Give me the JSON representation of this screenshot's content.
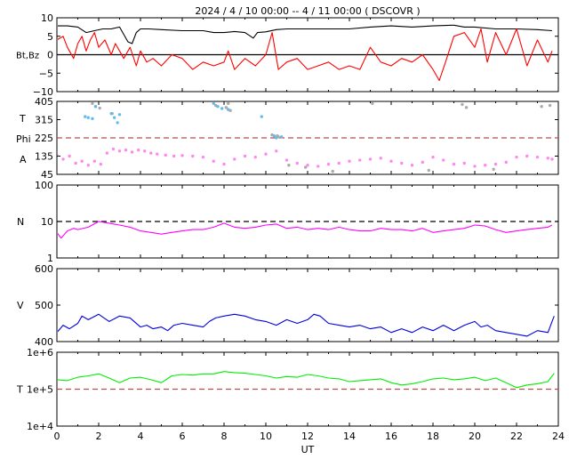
{
  "chart_data": {
    "type": "line",
    "title": "2024 /  4 / 10   00:00  --  4 / 11   00:00 ( DSCOVR )",
    "xlabel": "UT",
    "x_range": [
      0,
      24
    ],
    "x_ticks": [
      "0",
      "2",
      "4",
      "6",
      "8",
      "10",
      "12",
      "14",
      "16",
      "18",
      "20",
      "22",
      "24"
    ],
    "panels": [
      {
        "id": "mag",
        "ylabel": "Bt,Bz",
        "ylim": [
          -10,
          10
        ],
        "y_ticks": [
          "10",
          "5",
          "0",
          "−5",
          "−10"
        ],
        "reference_line": {
          "y": 0,
          "color": "#000000",
          "style": "solid"
        },
        "series": [
          {
            "color": "#000000",
            "x": [
              0,
              0.5,
              1,
              1.4,
              1.8,
              2.2,
              2.6,
              3,
              3.4,
              3.6,
              3.8,
              4,
              4.4,
              5,
              6,
              7,
              7.5,
              8,
              8.5,
              9,
              9.4,
              9.6,
              10,
              10.5,
              11,
              12,
              13,
              14,
              15,
              16,
              17,
              18,
              19,
              19.5,
              20,
              21,
              22,
              23,
              23.7
            ],
            "values": [
              7.8,
              7.8,
              7.5,
              6,
              6.5,
              7,
              7,
              7.5,
              3.5,
              3,
              6,
              7,
              7,
              6.8,
              6.5,
              6.5,
              6,
              6,
              6.3,
              6,
              4.5,
              6,
              6.2,
              6.8,
              7,
              7,
              7,
              7,
              7.5,
              7.8,
              7.5,
              7.8,
              8,
              7.5,
              7.5,
              7,
              7,
              6.8,
              6.5
            ]
          },
          {
            "color": "#ff0000",
            "x": [
              0,
              0.3,
              0.5,
              0.8,
              1,
              1.2,
              1.4,
              1.6,
              1.8,
              2,
              2.3,
              2.6,
              2.8,
              3,
              3.2,
              3.5,
              3.8,
              4,
              4.3,
              4.6,
              5,
              5.5,
              6,
              6.5,
              7,
              7.5,
              8,
              8.2,
              8.5,
              9,
              9.5,
              10,
              10.3,
              10.6,
              11,
              11.5,
              12,
              12.5,
              13,
              13.5,
              14,
              14.5,
              15,
              15.5,
              16,
              16.5,
              17,
              17.5,
              18,
              18.3,
              18.6,
              19,
              19.5,
              20,
              20.3,
              20.6,
              21,
              21.5,
              22,
              22.5,
              23,
              23.5,
              23.7
            ],
            "values": [
              4,
              5,
              2,
              -1,
              3,
              5,
              1,
              4,
              6,
              2,
              4,
              0,
              3,
              1,
              -1,
              2,
              -3,
              1,
              -2,
              -1,
              -3,
              0,
              -1,
              -4,
              -2,
              -3,
              -2,
              1,
              -4,
              -1,
              -3,
              0,
              6,
              -4,
              -2,
              -1,
              -4,
              -3,
              -2,
              -4,
              -3,
              -4,
              2,
              -2,
              -3,
              -1,
              -2,
              0,
              -4,
              -7,
              -2,
              5,
              6,
              2,
              7,
              -2,
              6,
              0,
              7,
              -3,
              4,
              -2,
              1
            ]
          }
        ]
      },
      {
        "id": "angles",
        "ylabels": [
          "T",
          "Phi",
          "A"
        ],
        "ylim": [
          45,
          405
        ],
        "y_ticks": [
          "405",
          "315",
          "225",
          "135",
          "45"
        ],
        "reference_line": {
          "y": 225,
          "color": "#b05050",
          "style": "dashed"
        },
        "series": [
          {
            "name": "A",
            "color": "#ff88ee",
            "x": [
              0,
              0.3,
              0.6,
              0.9,
              1.2,
              1.5,
              1.8,
              2.1,
              2.4,
              2.7,
              3,
              3.3,
              3.6,
              3.9,
              4.2,
              4.5,
              4.8,
              5.2,
              5.6,
              6,
              6.5,
              7,
              7.5,
              8,
              8.5,
              9,
              9.5,
              10,
              10.5,
              11,
              11.5,
              12,
              12.5,
              13,
              13.5,
              14,
              14.5,
              15,
              15.5,
              16,
              16.5,
              17,
              17.5,
              18,
              18.5,
              19,
              19.5,
              20,
              20.5,
              21,
              21.5,
              22,
              22.5,
              23,
              23.5,
              23.7
            ],
            "values": [
              140,
              120,
              135,
              100,
              110,
              90,
              110,
              95,
              150,
              170,
              160,
              165,
              155,
              165,
              160,
              150,
              145,
              140,
              135,
              138,
              135,
              130,
              110,
              95,
              120,
              135,
              130,
              145,
              160,
              115,
              100,
              90,
              85,
              95,
              100,
              110,
              115,
              120,
              125,
              110,
              100,
              90,
              105,
              130,
              115,
              95,
              100,
              85,
              90,
              95,
              105,
              130,
              135,
              130,
              125,
              120
            ]
          },
          {
            "name": "Phi",
            "color": "#aaaaaa",
            "x": [
              1.7,
              1.85,
              2.05,
              2.65,
              7.6,
              8.1,
              8.2,
              8.3,
              10.3,
              10.55,
              10.6,
              11.1,
              11.9,
              13.2,
              15.1,
              17.8,
              19.4,
              19.6,
              20.9,
              23.2,
              23.6
            ],
            "values": [
              395,
              380,
              372,
              345,
              385,
              375,
              395,
              360,
              240,
              235,
              230,
              90,
              80,
              60,
              395,
              65,
              390,
              375,
              70,
              380,
              385
            ]
          },
          {
            "name": "T",
            "color": "#66bbee",
            "x": [
              1.35,
              1.5,
              1.7,
              1.85,
              2.6,
              2.75,
              2.9,
              3,
              7.5,
              7.7,
              7.9,
              8.2,
              9.8,
              10.4,
              10.5,
              10.75
            ],
            "values": [
              330,
              325,
              320,
              380,
              345,
              325,
              300,
              340,
              395,
              380,
              370,
              365,
              330,
              235,
              225,
              230
            ]
          }
        ]
      },
      {
        "id": "density",
        "ylabel": "N",
        "scale": "log",
        "ylim": [
          1,
          100
        ],
        "y_ticks": [
          "100",
          "10",
          "1"
        ],
        "reference_line": {
          "y": 10,
          "color": "#000000",
          "style": "dashed"
        },
        "series": [
          {
            "color": "#ff00ff",
            "x": [
              0,
              0.2,
              0.5,
              0.8,
              1,
              1.5,
              2,
              2.5,
              3,
              3.5,
              4,
              4.5,
              5,
              5.5,
              6,
              6.5,
              7,
              7.5,
              8,
              8.5,
              9,
              9.5,
              10,
              10.5,
              11,
              11.5,
              12,
              12.5,
              13,
              13.5,
              14,
              14.5,
              15,
              15.5,
              16,
              16.5,
              17,
              17.5,
              18,
              18.5,
              19,
              19.5,
              20,
              20.5,
              21,
              21.5,
              22,
              22.5,
              23,
              23.5,
              23.7
            ],
            "values": [
              5,
              3.5,
              5.5,
              6.5,
              6,
              7,
              10,
              9,
              8,
              7,
              5.5,
              5,
              4.5,
              5,
              5.5,
              6,
              6,
              7,
              9,
              7,
              6.5,
              7,
              8,
              8.5,
              6.5,
              7,
              6,
              6.5,
              6,
              7,
              6,
              5.5,
              5.5,
              6.5,
              6,
              6,
              5.5,
              6.5,
              5,
              5.5,
              6,
              6.5,
              8,
              7.5,
              6,
              5,
              5.5,
              6,
              6.5,
              7,
              8
            ]
          }
        ]
      },
      {
        "id": "speed",
        "ylabel": "V",
        "ylim": [
          400,
          600
        ],
        "y_ticks": [
          "600",
          "500",
          "400"
        ],
        "series": [
          {
            "color": "#0000dd",
            "x": [
              0,
              0.3,
              0.6,
              1,
              1.2,
              1.5,
              2,
              2.5,
              3,
              3.5,
              4,
              4.3,
              4.6,
              5,
              5.3,
              5.6,
              6,
              6.5,
              7,
              7.3,
              7.6,
              8,
              8.5,
              9,
              9.5,
              10,
              10.5,
              11,
              11.5,
              12,
              12.3,
              12.6,
              13,
              13.5,
              14,
              14.5,
              15,
              15.5,
              16,
              16.5,
              17,
              17.5,
              18,
              18.5,
              19,
              19.5,
              20,
              20.3,
              20.6,
              21,
              21.5,
              22,
              22.5,
              23,
              23.5,
              23.8
            ],
            "values": [
              425,
              445,
              435,
              450,
              470,
              460,
              475,
              455,
              470,
              465,
              440,
              445,
              435,
              440,
              430,
              445,
              450,
              445,
              440,
              455,
              465,
              470,
              475,
              470,
              460,
              455,
              445,
              460,
              450,
              460,
              475,
              470,
              450,
              445,
              440,
              445,
              435,
              440,
              425,
              435,
              425,
              440,
              430,
              445,
              430,
              445,
              455,
              440,
              445,
              430,
              425,
              420,
              415,
              430,
              425,
              470
            ]
          }
        ]
      },
      {
        "id": "temperature",
        "ylabel": "T",
        "scale": "log",
        "ylim": [
          10000,
          1000000
        ],
        "y_ticks": [
          "1e+6",
          "1e+5",
          "1e+4"
        ],
        "reference_line": {
          "y": 100000,
          "color": "#b05050",
          "style": "dashed"
        },
        "series": [
          {
            "color": "#00ee00",
            "x": [
              0,
              0.5,
              1,
              1.5,
              2,
              2.5,
              3,
              3.5,
              4,
              4.5,
              5,
              5.5,
              6,
              6.5,
              7,
              7.5,
              8,
              8.5,
              9,
              9.5,
              10,
              10.5,
              11,
              11.5,
              12,
              12.5,
              13,
              13.5,
              14,
              14.5,
              15,
              15.5,
              16,
              16.5,
              17,
              17.5,
              18,
              18.5,
              19,
              19.5,
              20,
              20.5,
              21,
              21.5,
              22,
              22.5,
              23,
              23.5,
              23.8
            ],
            "values": [
              180000,
              170000,
              210000,
              230000,
              260000,
              200000,
              150000,
              200000,
              210000,
              180000,
              150000,
              230000,
              250000,
              240000,
              260000,
              260000,
              300000,
              280000,
              270000,
              250000,
              230000,
              200000,
              220000,
              210000,
              250000,
              230000,
              200000,
              190000,
              160000,
              170000,
              180000,
              190000,
              150000,
              130000,
              140000,
              160000,
              190000,
              200000,
              180000,
              190000,
              210000,
              170000,
              200000,
              150000,
              110000,
              130000,
              140000,
              160000,
              270000
            ]
          }
        ]
      }
    ]
  }
}
